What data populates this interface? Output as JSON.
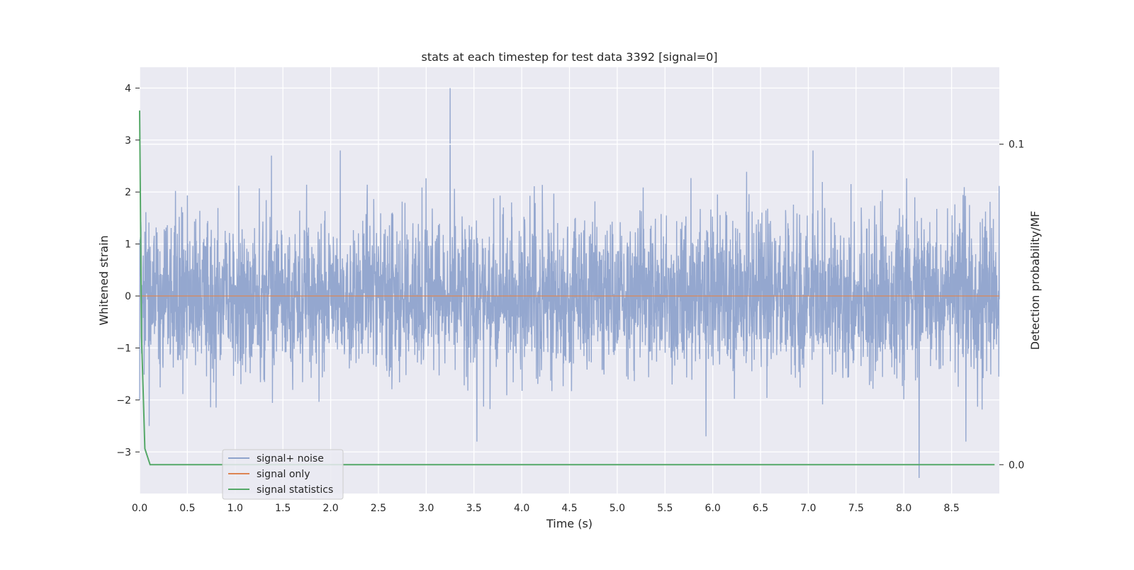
{
  "chart_data": {
    "type": "line",
    "title": "stats at each timestep for test data 3392 [signal=0]",
    "xlabel": "Time (s)",
    "ylabel": "Whitened strain",
    "y2label": "Detection probability/MF",
    "xlim": [
      0.0,
      9.0
    ],
    "ylim": [
      -3.8,
      4.4
    ],
    "y2lim": [
      -0.009,
      0.124
    ],
    "x_ticks": [
      "0.0",
      "0.5",
      "1.0",
      "1.5",
      "2.0",
      "2.5",
      "3.0",
      "3.5",
      "4.0",
      "4.5",
      "5.0",
      "5.5",
      "6.0",
      "6.5",
      "7.0",
      "7.5",
      "8.0",
      "8.5"
    ],
    "y_ticks": [
      "4",
      "3",
      "2",
      "1",
      "0",
      "−1",
      "−2",
      "−3"
    ],
    "y_tick_values": [
      4,
      3,
      2,
      1,
      0,
      -1,
      -2,
      -3
    ],
    "y2_ticks": [
      "0.1",
      "0.0"
    ],
    "y2_tick_values": [
      0.1,
      0.0
    ],
    "grid": true,
    "legend_position": "lower-left",
    "series": [
      {
        "name": "signal+ noise",
        "axis": "left",
        "color": "#8fa3cc",
        "description_values": {
          "duration_s": 9.0,
          "typical_envelope": [
            -1.6,
            2.0
          ],
          "peaks": [
            {
              "x": 3.25,
              "y": 4.0
            },
            {
              "x": 8.16,
              "y": -3.5
            },
            {
              "x": 3.53,
              "y": -2.8
            },
            {
              "x": 8.65,
              "y": -2.8
            },
            {
              "x": 5.93,
              "y": -2.7
            },
            {
              "x": 0.1,
              "y": -2.5
            },
            {
              "x": 7.05,
              "y": 2.8
            },
            {
              "x": 2.1,
              "y": 2.8
            },
            {
              "x": 1.38,
              "y": 2.7
            }
          ]
        }
      },
      {
        "name": "signal only",
        "axis": "left",
        "color": "#dd8452",
        "x": [
          0.0,
          9.0
        ],
        "y": [
          0.0,
          0.0
        ]
      },
      {
        "name": "signal statistics",
        "axis": "right",
        "color": "#55a868",
        "x": [
          0.0,
          0.02,
          0.055,
          0.11,
          0.5,
          1.0,
          2.0,
          3.0,
          4.0,
          5.0,
          6.0,
          7.0,
          8.0,
          8.95
        ],
        "y": [
          0.1105,
          0.04,
          0.005,
          0.0,
          0.0,
          0.0,
          0.0,
          0.0,
          0.0,
          0.0,
          0.0,
          0.0,
          0.0,
          0.0
        ]
      }
    ],
    "reference_line": {
      "axis": "right",
      "y": 0.1,
      "color": "#ffffff"
    }
  },
  "style": {
    "plot_bg": "#eaeaf2",
    "grid_color": "#ffffff",
    "text_color": "#262626"
  }
}
